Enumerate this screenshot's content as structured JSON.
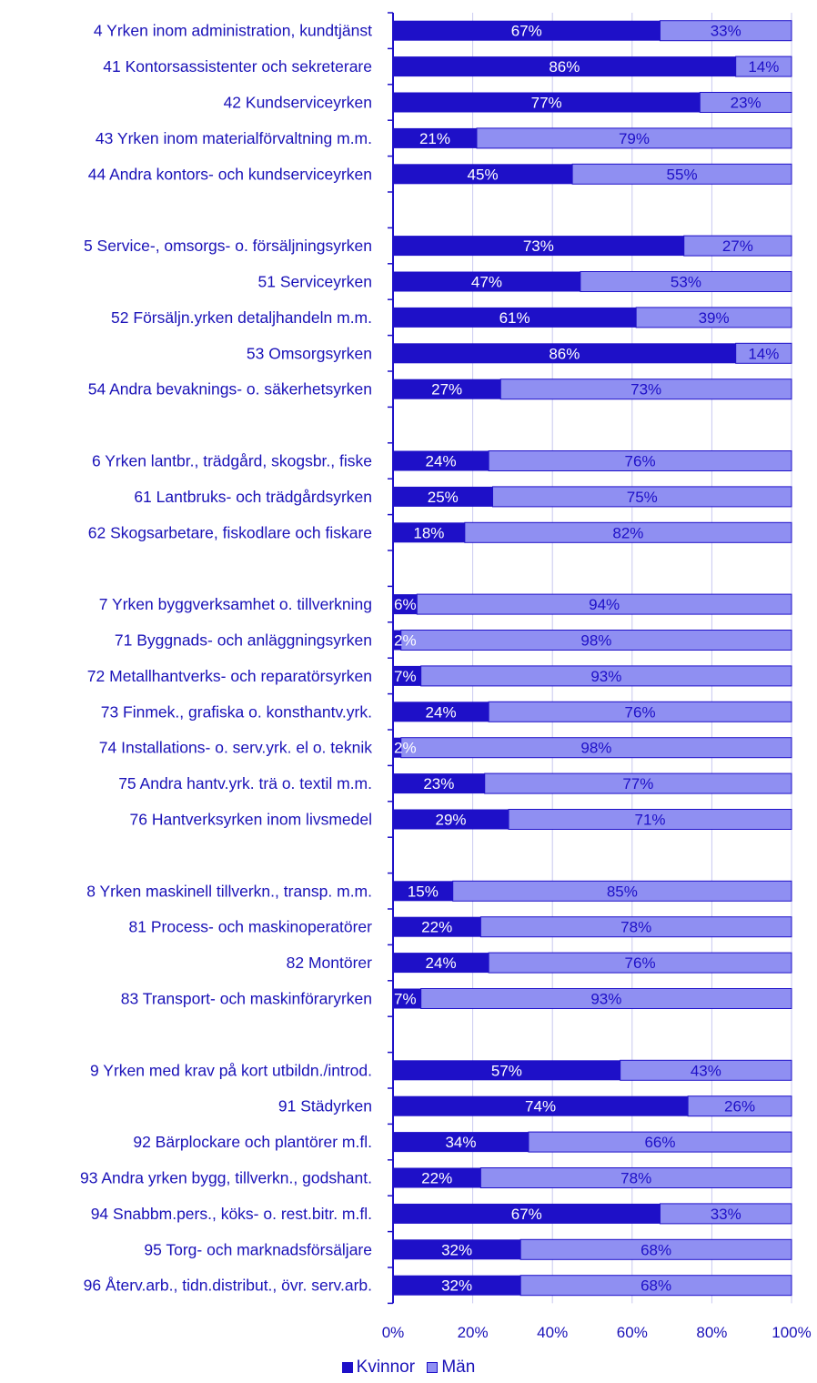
{
  "chart_data": {
    "type": "bar",
    "stacked": true,
    "orientation": "horizontal",
    "percent_labels": true,
    "xlim": [
      0,
      100
    ],
    "xticks": [
      "0%",
      "20%",
      "40%",
      "60%",
      "80%",
      "100%"
    ],
    "grid": "vertical",
    "legend_position": "bottom",
    "colors": {
      "kvinnor": "#1e10c8",
      "man": "#8f8ff2",
      "text": "#1a12b8",
      "grid": "#c8c8f0"
    },
    "categories": [
      "4 Yrken inom administration, kundtjänst",
      "41 Kontorsassistenter och sekreterare",
      "42 Kundserviceyrken",
      "43 Yrken inom materialförvaltning m.m.",
      "44 Andra kontors- och kundserviceyrken",
      "",
      "5 Service-, omsorgs- o. försäljningsyrken",
      "51 Serviceyrken",
      "52 Försäljn.yrken detaljhandeln m.m.",
      "53 Omsorgsyrken",
      "54 Andra bevaknings- o. säkerhetsyrken",
      "",
      "6 Yrken lantbr., trädgård, skogsbr.,  fiske",
      "61 Lantbruks- och trädgårdsyrken",
      "62 Skogsarbetare, fiskodlare och fiskare",
      "",
      "7 Yrken byggverksamhet o. tillverkning",
      "71 Byggnads- och anläggningsyrken",
      "72 Metallhantverks- och reparatörsyrken",
      "73 Finmek., grafiska o. konsthantv.yrk.",
      "74 Installations- o. serv.yrk. el o. teknik",
      "75 Andra hantv.yrk. trä o. textil m.m.",
      "76 Hantverksyrken inom livsmedel",
      "",
      "8 Yrken maskinell tillverkn., transp. m.m.",
      "81 Process- och maskinoperatörer",
      "82 Montörer",
      "83 Transport- och maskinföraryrken",
      "",
      "9 Yrken med krav på kort utbildn./introd.",
      "91 Städyrken",
      "92 Bärplockare och plantörer m.fl.",
      "93 Andra yrken bygg, tillverkn., godshant.",
      "94 Snabbm.pers., köks- o. rest.bitr. m.fl.",
      "95 Torg- och marknadsförsäljare",
      "96 Återv.arb., tidn.distribut., övr. serv.arb."
    ],
    "series": [
      {
        "name": "Kvinnor",
        "values": [
          67,
          86,
          77,
          21,
          45,
          null,
          73,
          47,
          61,
          86,
          27,
          null,
          24,
          25,
          18,
          null,
          6,
          2,
          7,
          24,
          2,
          23,
          29,
          null,
          15,
          22,
          24,
          7,
          null,
          57,
          74,
          34,
          22,
          67,
          32,
          32
        ]
      },
      {
        "name": "Män",
        "values": [
          33,
          14,
          23,
          79,
          55,
          null,
          27,
          53,
          39,
          14,
          73,
          null,
          76,
          75,
          82,
          null,
          94,
          98,
          93,
          76,
          98,
          77,
          71,
          null,
          85,
          78,
          76,
          93,
          null,
          43,
          26,
          66,
          78,
          33,
          68,
          68
        ]
      }
    ]
  },
  "legend": {
    "kvinnor_label": "Kvinnor",
    "man_label": "Män"
  }
}
